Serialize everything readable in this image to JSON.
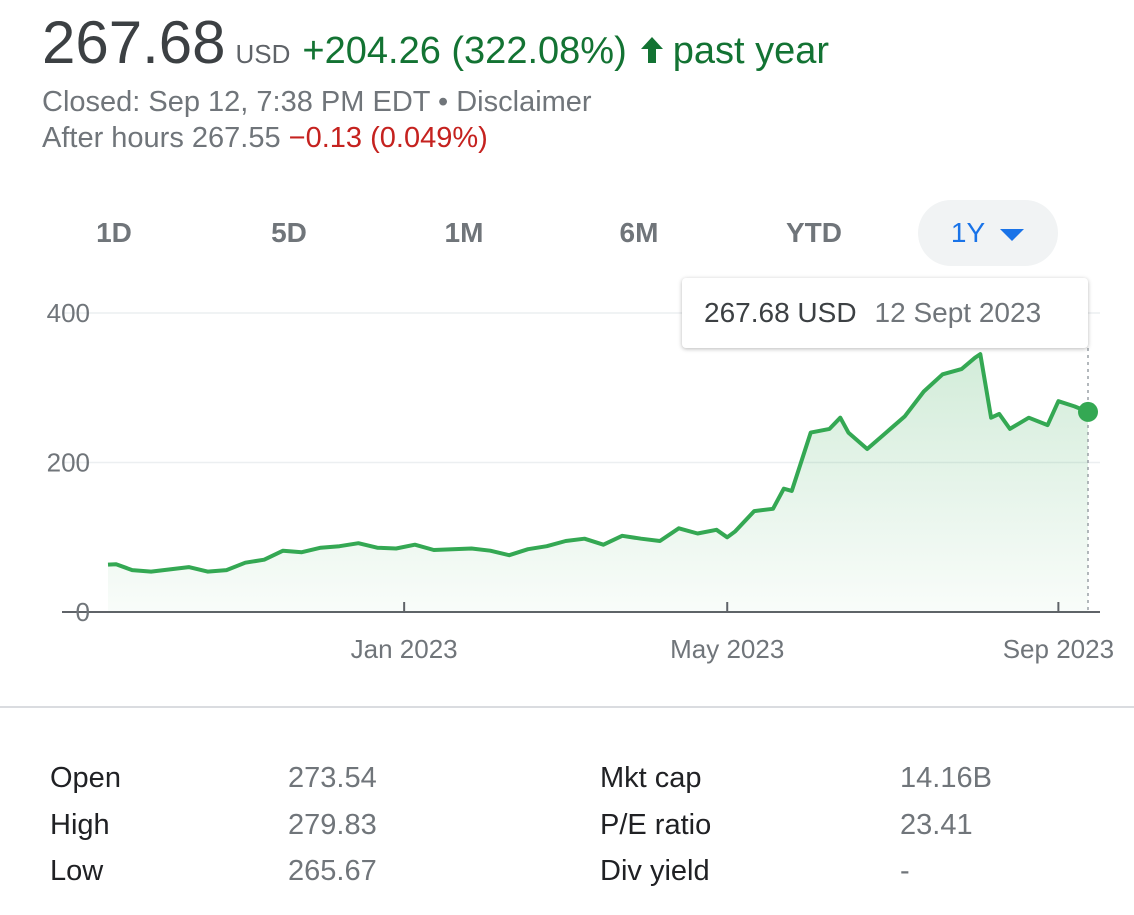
{
  "header": {
    "price": "267.68",
    "currency": "USD",
    "change": "+204.26 (322.08%)",
    "period": "past year",
    "closed_text": "Closed: Sep 12, 7:38 PM EDT",
    "separator": " • ",
    "disclaimer": "Disclaimer",
    "after_hours_label": "After hours 267.55",
    "after_hours_change": "−0.13 (0.049%)",
    "colors": {
      "positive": "#137333",
      "negative": "#c5221f",
      "accent": "#1a73e8"
    }
  },
  "ranges": {
    "items": [
      "1D",
      "5D",
      "1M",
      "6M",
      "YTD",
      "1Y"
    ],
    "selected": "1Y"
  },
  "tooltip": {
    "price": "267.68 USD",
    "date": "12 Sept 2023"
  },
  "chart_data": {
    "type": "area",
    "ylim": [
      0,
      400
    ],
    "yticks": [
      "400",
      "200",
      "0"
    ],
    "xticks": [
      "Jan 2023",
      "May 2023",
      "Sep 2023"
    ],
    "line_color": "#34a853",
    "x": [
      "2022-09-13",
      "2022-09-16",
      "2022-09-22",
      "2022-09-29",
      "2022-10-06",
      "2022-10-13",
      "2022-10-20",
      "2022-10-27",
      "2022-11-03",
      "2022-11-10",
      "2022-11-17",
      "2022-11-24",
      "2022-12-01",
      "2022-12-08",
      "2022-12-15",
      "2022-12-22",
      "2022-12-29",
      "2023-01-05",
      "2023-01-12",
      "2023-01-19",
      "2023-01-26",
      "2023-02-02",
      "2023-02-09",
      "2023-02-16",
      "2023-02-23",
      "2023-03-02",
      "2023-03-09",
      "2023-03-16",
      "2023-03-23",
      "2023-03-30",
      "2023-04-06",
      "2023-04-13",
      "2023-04-20",
      "2023-04-27",
      "2023-05-01",
      "2023-05-04",
      "2023-05-11",
      "2023-05-18",
      "2023-05-22",
      "2023-05-25",
      "2023-06-01",
      "2023-06-08",
      "2023-06-12",
      "2023-06-15",
      "2023-06-22",
      "2023-06-29",
      "2023-07-06",
      "2023-07-13",
      "2023-07-20",
      "2023-07-27",
      "2023-08-01",
      "2023-08-03",
      "2023-08-07",
      "2023-08-10",
      "2023-08-14",
      "2023-08-21",
      "2023-08-28",
      "2023-09-01",
      "2023-09-07",
      "2023-09-12"
    ],
    "values": [
      63.4,
      64,
      56,
      54,
      57,
      60,
      54,
      56,
      66,
      70,
      82,
      80,
      86,
      88,
      92,
      86,
      85,
      90,
      83,
      84,
      85,
      82,
      76,
      84,
      88,
      95,
      98,
      90,
      102,
      98,
      95,
      112,
      105,
      110,
      100,
      108,
      135,
      138,
      165,
      162,
      240,
      245,
      260,
      240,
      218,
      240,
      262,
      295,
      318,
      325,
      340,
      345,
      260,
      265,
      245,
      260,
      250,
      282,
      275,
      267.68
    ]
  },
  "stats": {
    "left": [
      {
        "label": "Open",
        "value": "273.54"
      },
      {
        "label": "High",
        "value": "279.83"
      },
      {
        "label": "Low",
        "value": "265.67"
      }
    ],
    "right": [
      {
        "label": "Mkt cap",
        "value": "14.16B"
      },
      {
        "label": "P/E ratio",
        "value": "23.41"
      },
      {
        "label": "Div yield",
        "value": "-"
      }
    ]
  }
}
